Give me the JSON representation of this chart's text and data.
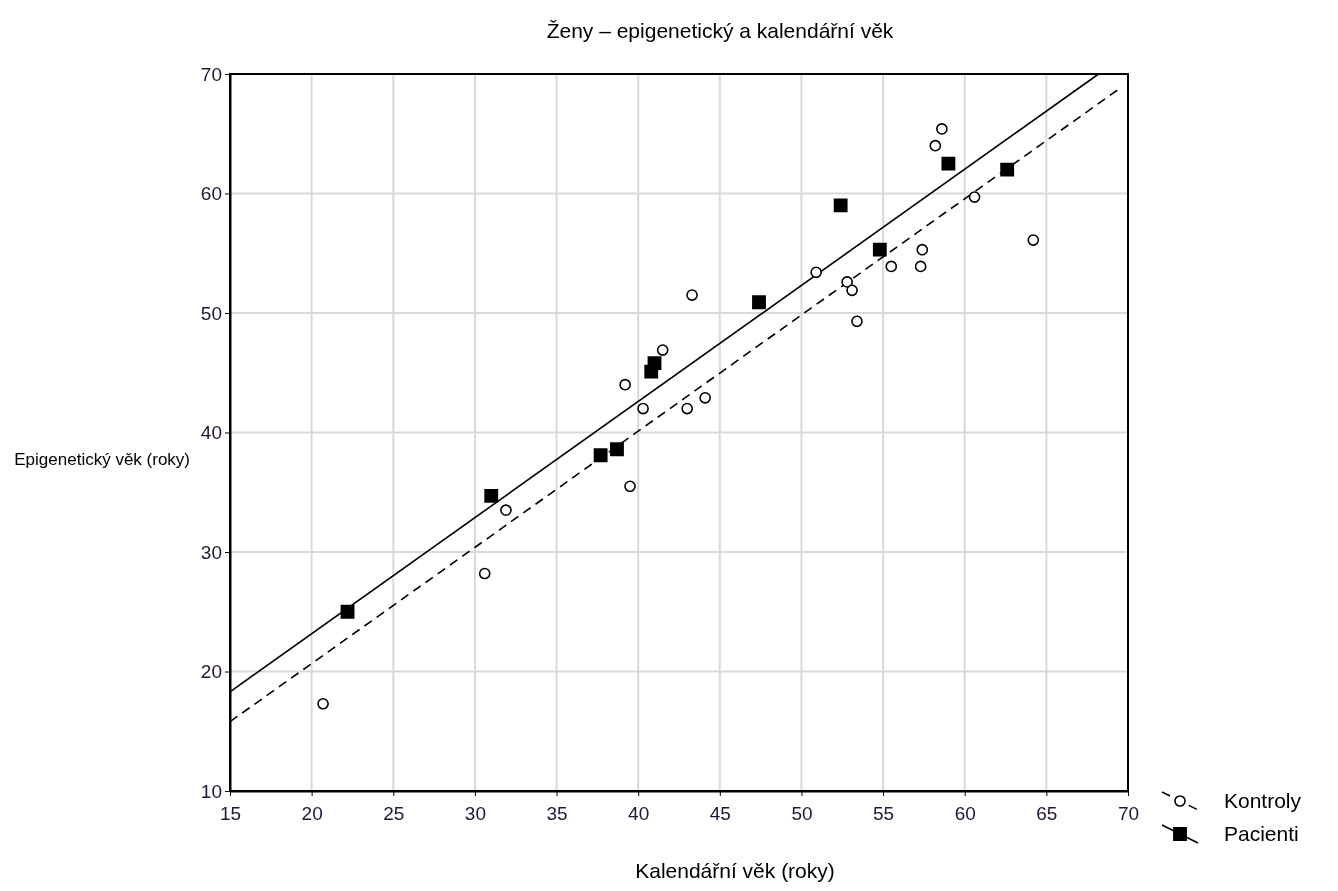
{
  "chart_data": {
    "type": "scatter",
    "title": "Ženy – epigenetický a kalendářní věk",
    "xlabel": "Kalendářní věk (roky)",
    "ylabel": "Epigenetický věk (roky)",
    "xlim": [
      15,
      70
    ],
    "xticks": [
      15,
      20,
      25,
      30,
      35,
      40,
      45,
      50,
      55,
      60,
      65,
      70
    ],
    "ylim": [
      10,
      70
    ],
    "yticks": [
      10,
      20,
      30,
      40,
      50,
      60,
      70
    ],
    "grid": true,
    "legend": "bottom right",
    "series": [
      {
        "name": "Kontroly",
        "color": "#000000",
        "marker": "circle",
        "line_style": "dashed",
        "x": [
          20.7,
          30.6,
          31.9,
          39.5,
          39.2,
          40.3,
          41.5,
          43.0,
          44.1,
          43.3,
          50.9,
          52.8,
          53.1,
          53.4,
          55.5,
          57.3,
          57.4,
          58.2,
          58.6,
          60.6,
          64.2
        ],
        "values": [
          17.3,
          28.2,
          33.5,
          35.5,
          44.0,
          42.0,
          46.9,
          42.0,
          42.9,
          51.5,
          53.4,
          52.6,
          51.9,
          49.3,
          53.9,
          53.9,
          55.3,
          64.0,
          65.4,
          59.7,
          56.1
        ]
      },
      {
        "name": "Pacienti",
        "color": "#000000",
        "marker": "square",
        "line_style": "solid",
        "x": [
          22.2,
          31.0,
          37.7,
          38.7,
          40.8,
          41.0,
          47.4,
          52.4,
          54.8,
          59.0,
          62.6
        ],
        "values": [
          25.0,
          34.7,
          38.1,
          38.6,
          45.1,
          45.8,
          50.9,
          59.0,
          55.3,
          62.5,
          62.0
        ]
      },
      {
        "type": "line",
        "color": "#000000",
        "line_style": "dashed",
        "marker": "none",
        "x": [
          15,
          69.4
        ],
        "values": [
          15.8,
          68.7
        ]
      },
      {
        "type": "line",
        "color": "#000000",
        "line_style": "solid",
        "marker": "none",
        "x": [
          15,
          68.2
        ],
        "values": [
          18.3,
          70
        ]
      }
    ]
  }
}
